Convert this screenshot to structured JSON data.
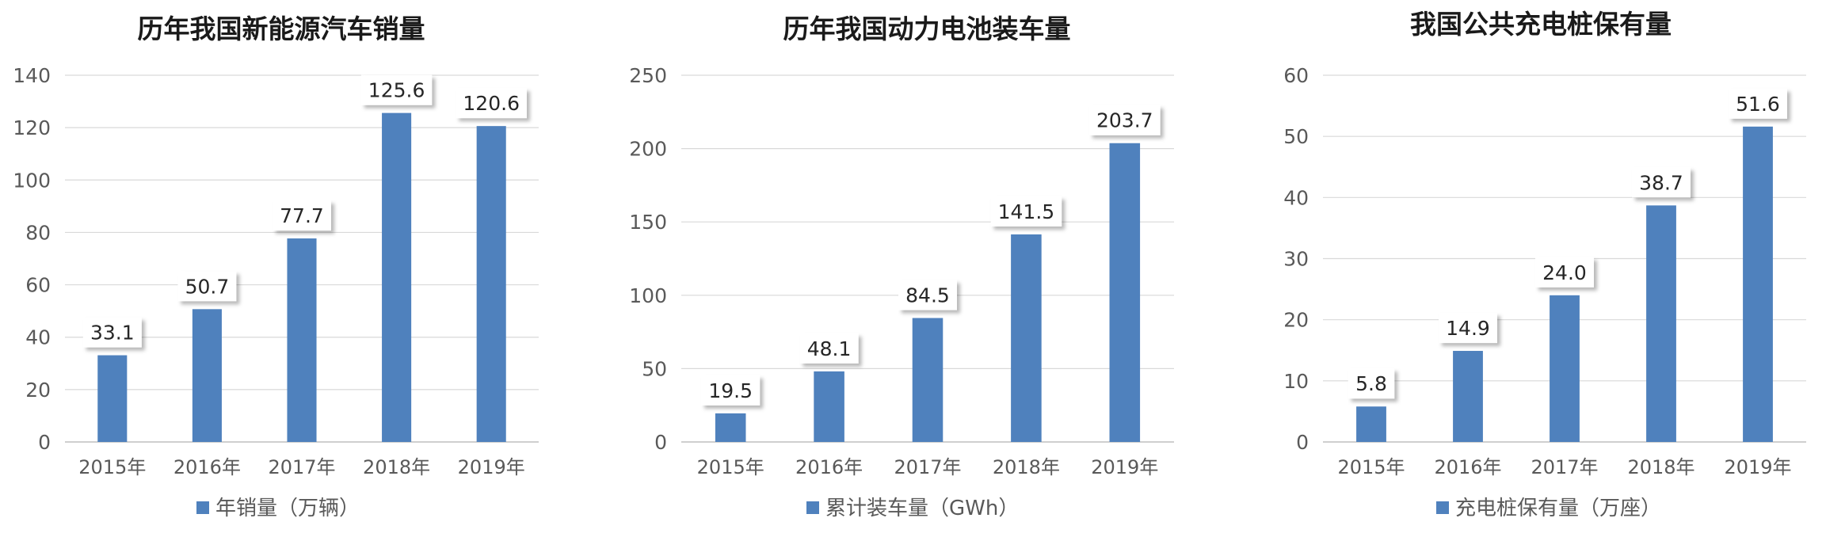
{
  "chart_data": [
    {
      "type": "bar",
      "title": "历年我国新能源汽车销量",
      "categories": [
        "2015年",
        "2016年",
        "2017年",
        "2018年",
        "2019年"
      ],
      "series": [
        {
          "name": "年销量（万辆）",
          "values": [
            33.1,
            50.7,
            77.7,
            125.6,
            120.6
          ]
        }
      ],
      "data_labels": [
        "33.1",
        "50.7",
        "77.7",
        "125.6",
        "120.6"
      ],
      "yticks": [
        "0",
        "20",
        "40",
        "60",
        "80",
        "100",
        "120",
        "140"
      ],
      "ylim": [
        0,
        140
      ],
      "color": "#4f81bd",
      "grid": true,
      "legend": "bottom"
    },
    {
      "type": "bar",
      "title": "历年我国动力电池装车量",
      "categories": [
        "2015年",
        "2016年",
        "2017年",
        "2018年",
        "2019年"
      ],
      "series": [
        {
          "name": "累计装车量（GWh）",
          "values": [
            19.5,
            48.1,
            84.5,
            141.5,
            203.7
          ]
        }
      ],
      "data_labels": [
        "19.5",
        "48.1",
        "84.5",
        "141.5",
        "203.7"
      ],
      "yticks": [
        "0",
        "50",
        "100",
        "150",
        "200",
        "250"
      ],
      "ylim": [
        0,
        250
      ],
      "color": "#4f81bd",
      "grid": true,
      "legend": "bottom"
    },
    {
      "type": "bar",
      "title": "我国公共充电桩保有量",
      "categories": [
        "2015年",
        "2016年",
        "2017年",
        "2018年",
        "2019年"
      ],
      "series": [
        {
          "name": "充电桩保有量（万座）",
          "values": [
            5.8,
            14.9,
            24.0,
            38.7,
            51.6
          ]
        }
      ],
      "data_labels": [
        "5.8",
        "14.9",
        "24.0",
        "38.7",
        "51.6"
      ],
      "yticks": [
        "0",
        "10",
        "20",
        "30",
        "40",
        "50",
        "60"
      ],
      "ylim": [
        0,
        60
      ],
      "color": "#4f81bd",
      "grid": true,
      "legend": "bottom"
    }
  ]
}
